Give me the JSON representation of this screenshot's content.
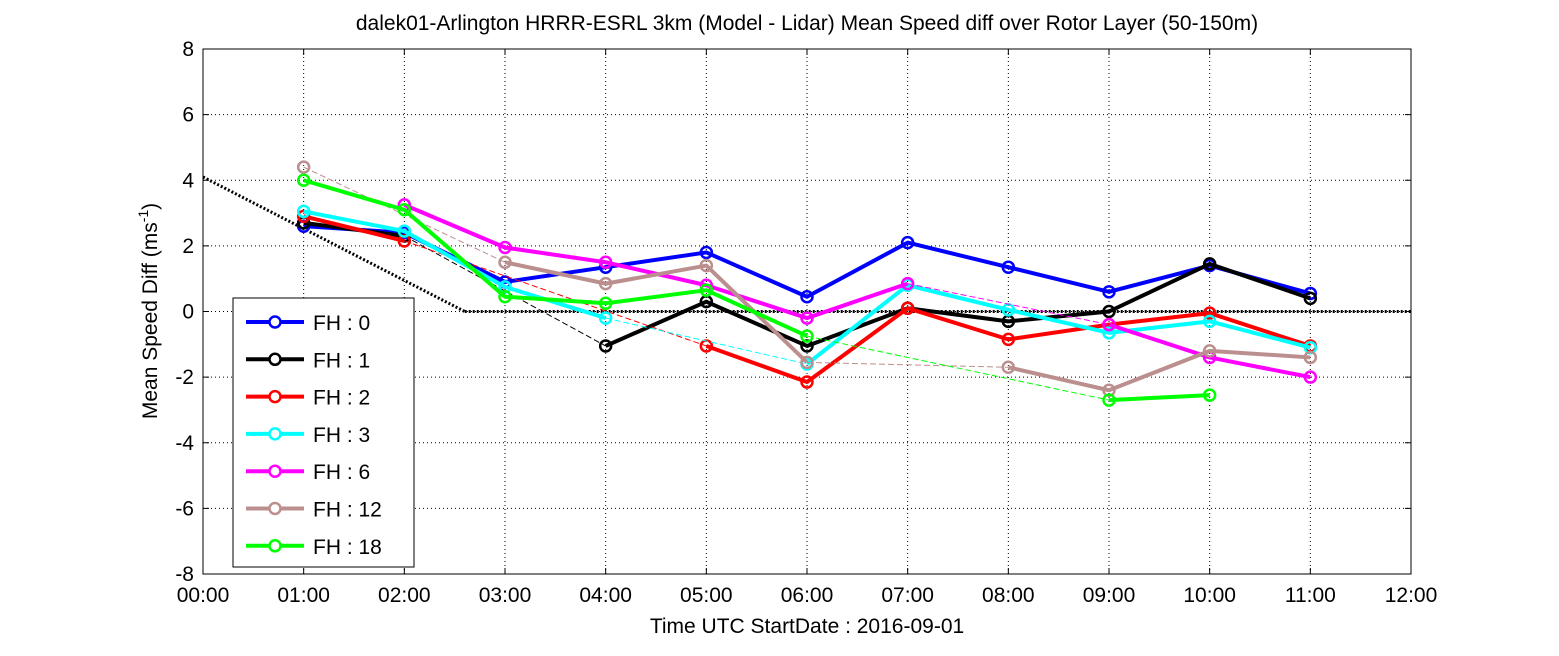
{
  "chart_data": {
    "type": "line",
    "title": "dalek01-Arlington HRRR-ESRL 3km (Model - Lidar) Mean Speed diff over Rotor Layer (50-150m)",
    "xlabel": "Time UTC    StartDate : 2016-09-01",
    "ylabel": "Mean Speed Diff (ms",
    "ylabel_sup": "-1",
    "ylabel_close": ")",
    "xlim": [
      0,
      12
    ],
    "ylim": [
      -8,
      8
    ],
    "x_tick_labels": [
      "00:00",
      "01:00",
      "02:00",
      "03:00",
      "04:00",
      "05:00",
      "06:00",
      "07:00",
      "08:00",
      "09:00",
      "10:00",
      "11:00",
      "12:00"
    ],
    "y_tick_labels": [
      "-8",
      "-6",
      "-4",
      "-2",
      "0",
      "2",
      "4",
      "6",
      "8"
    ],
    "grid": true,
    "legend_position": "lower-left",
    "series": [
      {
        "name": "FH : 0",
        "color": "#0000ff",
        "x": [
          1,
          2,
          3,
          4,
          5,
          6,
          7,
          8,
          9,
          10,
          11
        ],
        "values": [
          2.6,
          2.4,
          0.9,
          1.35,
          1.8,
          0.45,
          2.1,
          1.35,
          0.6,
          1.4,
          0.55
        ]
      },
      {
        "name": "FH : 1",
        "color": "#000000",
        "x": [
          1,
          2,
          3,
          4,
          5,
          6,
          7,
          8,
          9,
          10,
          11
        ],
        "values": [
          2.7,
          2.3,
          null,
          -1.05,
          0.3,
          -1.05,
          0.1,
          -0.3,
          0.0,
          1.45,
          0.4
        ]
      },
      {
        "name": "FH : 2",
        "color": "#ff0000",
        "x": [
          1,
          2,
          3,
          4,
          5,
          6,
          7,
          8,
          9,
          10,
          11
        ],
        "values": [
          2.9,
          2.15,
          null,
          null,
          -1.05,
          -2.15,
          0.1,
          -0.85,
          -0.4,
          -0.05,
          -1.05
        ]
      },
      {
        "name": "FH : 3",
        "color": "#00ffff",
        "x": [
          1,
          2,
          3,
          4,
          5,
          6,
          7,
          8,
          9,
          10,
          11
        ],
        "values": [
          3.05,
          2.45,
          0.75,
          -0.2,
          null,
          -1.6,
          0.8,
          0.05,
          -0.65,
          -0.3,
          -1.1
        ]
      },
      {
        "name": "FH : 6",
        "color": "#ff00ff",
        "x": [
          1,
          2,
          3,
          4,
          5,
          6,
          7,
          8,
          9,
          10,
          11
        ],
        "values": [
          null,
          3.25,
          1.95,
          1.5,
          0.8,
          -0.2,
          0.85,
          null,
          -0.4,
          -1.4,
          -2.0
        ]
      },
      {
        "name": "FH : 12",
        "color": "#bc8f8f",
        "x": [
          1,
          2,
          3,
          4,
          5,
          6,
          7,
          8,
          9,
          10,
          11
        ],
        "values": [
          4.4,
          null,
          1.5,
          0.85,
          1.4,
          -1.55,
          null,
          -1.7,
          -2.4,
          -1.2,
          -1.4
        ]
      },
      {
        "name": "FH : 18",
        "color": "#00ff00",
        "x": [
          1,
          2,
          3,
          4,
          5,
          6,
          7,
          8,
          9,
          10,
          11
        ],
        "values": [
          4.0,
          3.1,
          0.45,
          0.25,
          0.65,
          -0.75,
          null,
          null,
          -2.7,
          -2.55,
          null
        ]
      }
    ]
  }
}
